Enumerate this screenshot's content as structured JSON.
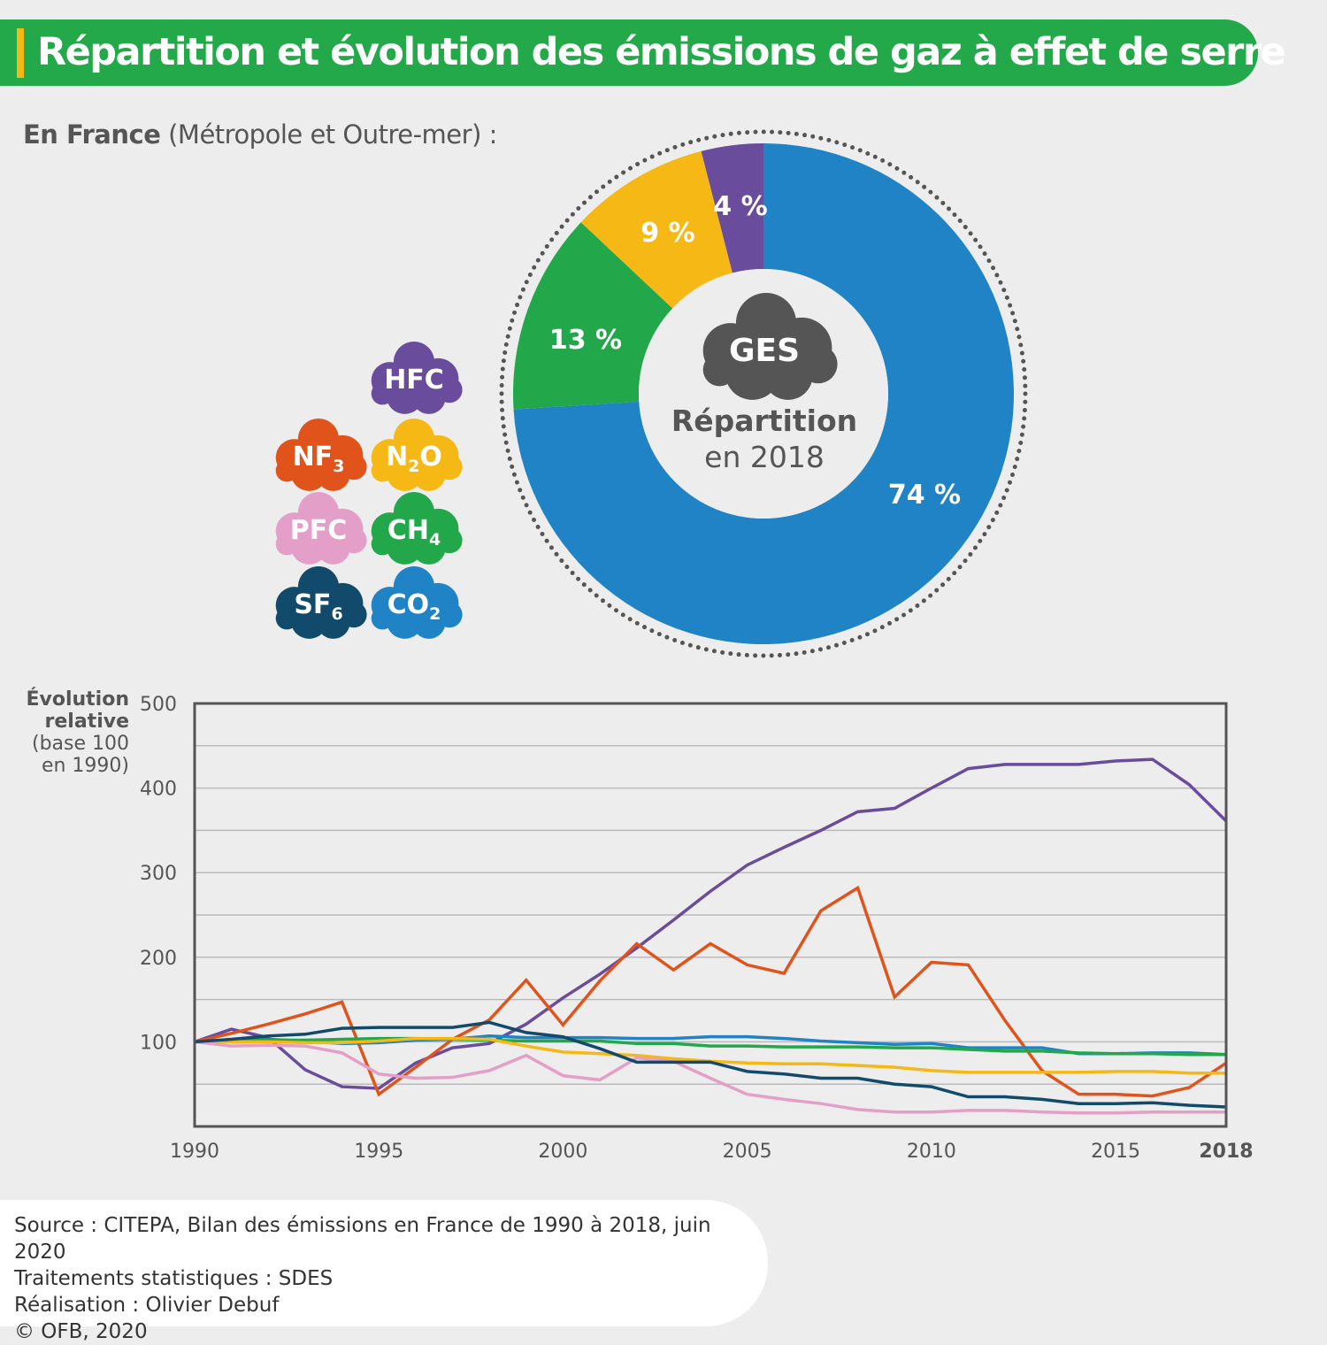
{
  "title": "Répartition et évolution des émissions de gaz à effet de serre",
  "subtitle_bold": "En France",
  "subtitle_rest": " (Métropole et Outre-mer) :",
  "colors": {
    "header": "#23a84a",
    "accent": "#f5b815",
    "CO2": "#1f83c6",
    "CH4": "#22a84a",
    "N2O": "#f5b815",
    "HFC": "#6a4c9c",
    "NF3": "#e0541c",
    "PFC": "#e39fc8",
    "SF6": "#124a6b"
  },
  "legend": [
    {
      "gas": "HFC",
      "label": "HFC",
      "sub": "",
      "color": "#6a4c9c"
    },
    {
      "gas": "NF3",
      "label": "NF",
      "sub": "3",
      "color": "#e0541c"
    },
    {
      "gas": "N2O",
      "label": "N",
      "sub": "2",
      "tail": "O",
      "color": "#f5b815"
    },
    {
      "gas": "PFC",
      "label": "PFC",
      "sub": "",
      "color": "#e39fc8"
    },
    {
      "gas": "CH4",
      "label": "CH",
      "sub": "4",
      "color": "#22a84a"
    },
    {
      "gas": "SF6",
      "label": "SF",
      "sub": "6",
      "color": "#124a6b"
    },
    {
      "gas": "CO2",
      "label": "CO",
      "sub": "2",
      "color": "#1f83c6"
    }
  ],
  "chart_data": [
    {
      "type": "pie",
      "subtype": "donut",
      "center_badge": "GES",
      "center_text_1": "Répartition",
      "center_text_2": "en 2018",
      "slices": [
        {
          "gas": "CO2",
          "value": 74,
          "label": "74 %",
          "color": "#1f83c6"
        },
        {
          "gas": "CH4",
          "value": 13,
          "label": "13 %",
          "color": "#22a84a"
        },
        {
          "gas": "N2O",
          "value": 9,
          "label": "9 %",
          "color": "#f5b815"
        },
        {
          "gas": "HFC",
          "value": 4,
          "label": "4 %",
          "color": "#6a4c9c"
        }
      ]
    },
    {
      "type": "line",
      "ylabel_bold": "Évolution relative",
      "ylabel_2": "(base 100",
      "ylabel_3": "en 1990)",
      "xlim": [
        1990,
        2018
      ],
      "ylim": [
        0,
        500
      ],
      "yticks": [
        100,
        200,
        300,
        400,
        500
      ],
      "xticks": [
        "1990",
        "1995",
        "2000",
        "2005",
        "2010",
        "2015",
        "2018"
      ],
      "grid": true,
      "x_start": 1990,
      "series": [
        {
          "gas": "HFC",
          "color": "#6a4c9c",
          "values": [
            100,
            115,
            105,
            67,
            47,
            45,
            75,
            93,
            98,
            121,
            152,
            180,
            211,
            244,
            278,
            309,
            330,
            350,
            372,
            376,
            400,
            423,
            428,
            428,
            428,
            432,
            434,
            404,
            361
          ]
        },
        {
          "gas": "NF3",
          "color": "#e0541c",
          "values": [
            100,
            110,
            121,
            133,
            147,
            38,
            70,
            103,
            126,
            173,
            120,
            172,
            216,
            185,
            216,
            191,
            181,
            255,
            282,
            153,
            194,
            191,
            125,
            66,
            38,
            38,
            36,
            46,
            75
          ]
        },
        {
          "gas": "CO2",
          "color": "#1f83c6",
          "values": [
            100,
            102,
            103,
            101,
            98,
            99,
            102,
            103,
            107,
            105,
            105,
            105,
            104,
            104,
            106,
            106,
            104,
            101,
            99,
            97,
            98,
            93,
            93,
            93,
            86,
            86,
            87,
            87,
            85
          ]
        },
        {
          "gas": "CH4",
          "color": "#22a84a",
          "values": [
            100,
            101,
            102,
            102,
            103,
            104,
            104,
            103,
            102,
            101,
            101,
            101,
            98,
            98,
            95,
            95,
            94,
            94,
            94,
            93,
            93,
            91,
            89,
            89,
            87,
            86,
            86,
            85,
            85
          ]
        },
        {
          "gas": "N2O",
          "color": "#f5b815",
          "values": [
            100,
            100,
            100,
            99,
            99,
            101,
            104,
            104,
            103,
            95,
            88,
            86,
            84,
            80,
            77,
            75,
            74,
            74,
            72,
            70,
            66,
            64,
            64,
            64,
            64,
            65,
            65,
            63,
            63
          ]
        },
        {
          "gas": "PFC",
          "color": "#e39fc8",
          "values": [
            100,
            95,
            96,
            95,
            87,
            62,
            57,
            58,
            66,
            84,
            60,
            55,
            81,
            77,
            57,
            38,
            32,
            27,
            20,
            17,
            17,
            19,
            19,
            17,
            16,
            16,
            17,
            17,
            17
          ]
        },
        {
          "gas": "SF6",
          "color": "#124a6b",
          "values": [
            100,
            103,
            107,
            109,
            116,
            117,
            117,
            117,
            123,
            111,
            106,
            92,
            76,
            76,
            76,
            65,
            62,
            57,
            57,
            50,
            47,
            35,
            35,
            32,
            27,
            27,
            28,
            25,
            23
          ]
        }
      ]
    }
  ],
  "footer": [
    "Source : CITEPA, Bilan des émissions en France de 1990 à 2018, juin 2020",
    "Traitements statistiques : SDES",
    "Réalisation : Olivier Debuf",
    "© OFB, 2020"
  ]
}
